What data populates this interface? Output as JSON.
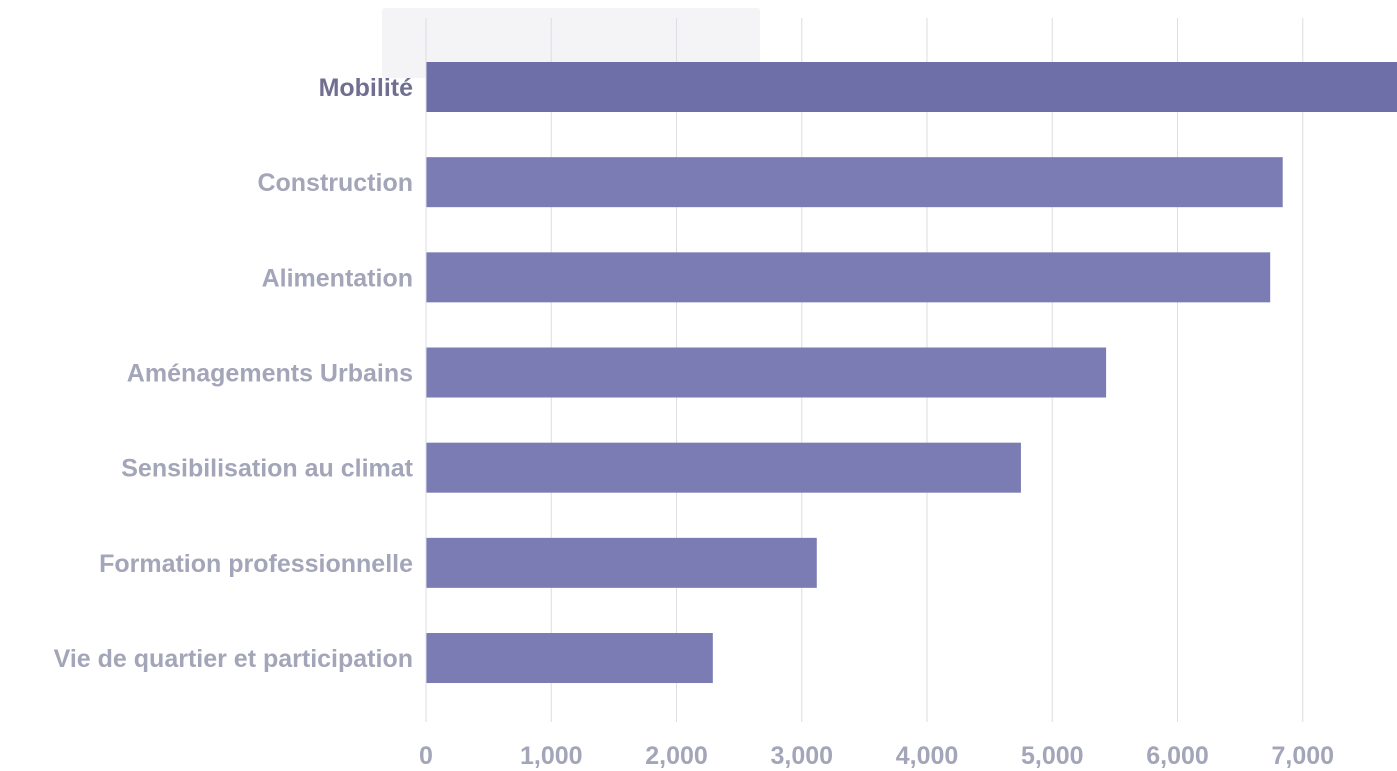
{
  "colors": {
    "bar": "#7c7cb4",
    "bar_highlight": "#6e6fa8",
    "grid": "#dddde3",
    "label": "#a3a5b8",
    "label_active": "#6f7091"
  },
  "chart_data": {
    "type": "bar",
    "orientation": "horizontal",
    "categories": [
      "Mobilité",
      "Construction",
      "Alimentation",
      "Aménagements Urbains",
      "Sensibilisation au climat",
      "Formation professionnelle",
      "Vie de quartier et participation"
    ],
    "values": [
      7900,
      6840,
      6740,
      5430,
      4750,
      3120,
      2290
    ],
    "highlighted": "Mobilité",
    "xlim": [
      0,
      7750
    ],
    "xticks": [
      0,
      1000,
      2000,
      3000,
      4000,
      5000,
      6000,
      7000
    ],
    "xtick_labels": [
      "0",
      "1,000",
      "2,000",
      "3,000",
      "4,000",
      "5,000",
      "6,000",
      "7,000"
    ],
    "grid": "vertical",
    "title": "",
    "xlabel": "",
    "ylabel": ""
  }
}
